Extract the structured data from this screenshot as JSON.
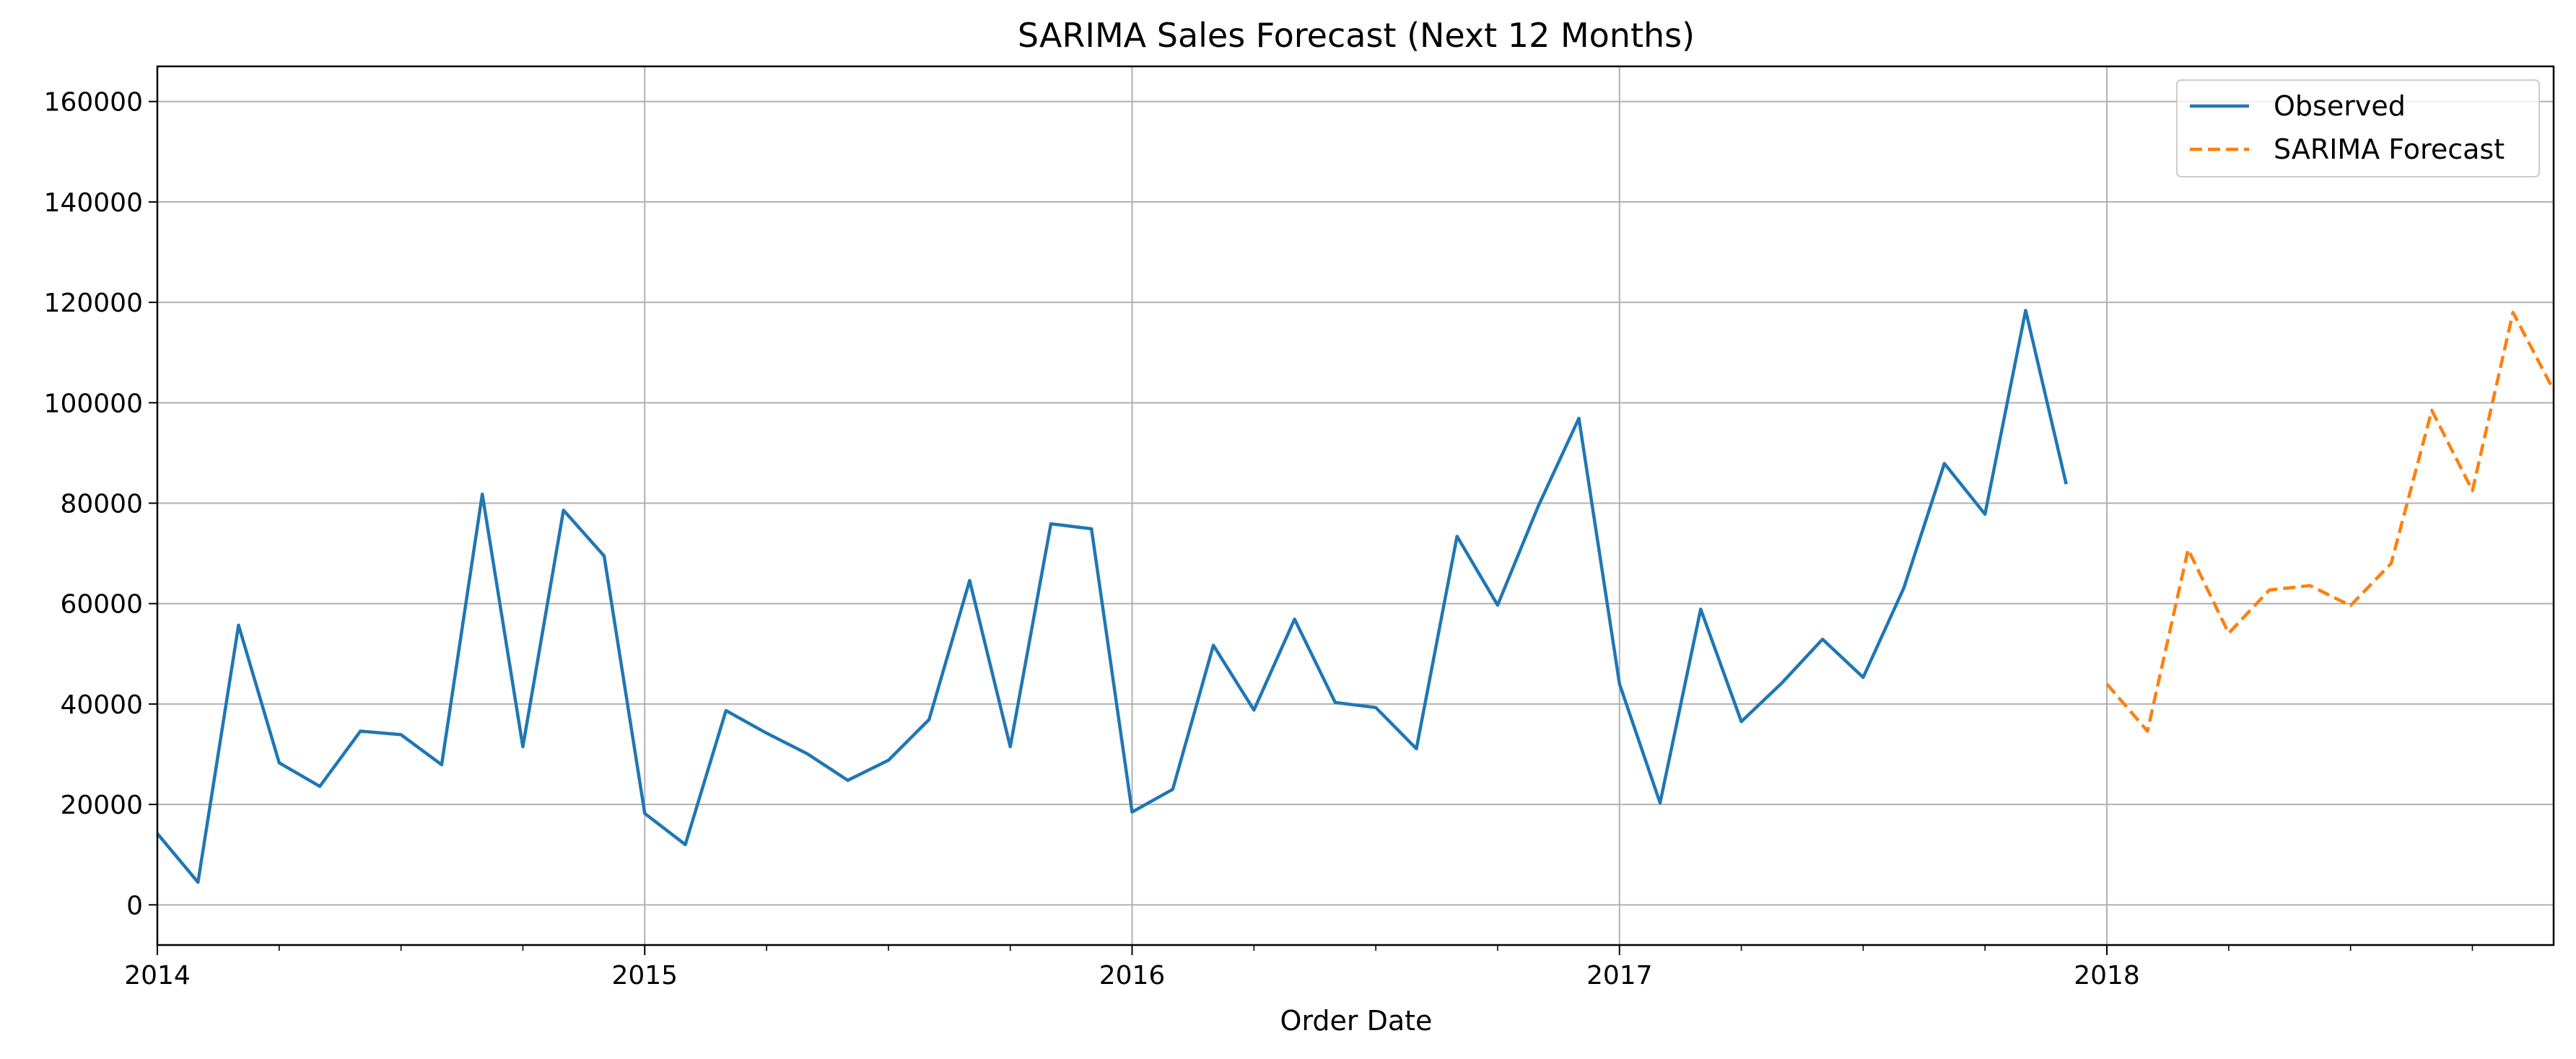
{
  "chart_data": {
    "type": "line",
    "title": "SARIMA Sales Forecast (Next 12 Months)",
    "xlabel": "Order Date",
    "ylabel": "",
    "xlim": [
      "2014-01",
      "2018-12"
    ],
    "ylim": [
      -8000,
      167000
    ],
    "grid": true,
    "legend_position": "top-right",
    "x_ticks": [
      "2014",
      "2015",
      "2016",
      "2017",
      "2018"
    ],
    "y_ticks": [
      0,
      20000,
      40000,
      60000,
      80000,
      100000,
      120000,
      140000,
      160000
    ],
    "series": [
      {
        "name": "Observed",
        "color": "#1f77b4",
        "style": "solid",
        "x": [
          "2014-01",
          "2014-02",
          "2014-03",
          "2014-04",
          "2014-05",
          "2014-06",
          "2014-07",
          "2014-08",
          "2014-09",
          "2014-10",
          "2014-11",
          "2014-12",
          "2015-01",
          "2015-02",
          "2015-03",
          "2015-04",
          "2015-05",
          "2015-06",
          "2015-07",
          "2015-08",
          "2015-09",
          "2015-10",
          "2015-11",
          "2015-12",
          "2016-01",
          "2016-02",
          "2016-03",
          "2016-04",
          "2016-05",
          "2016-06",
          "2016-07",
          "2016-08",
          "2016-09",
          "2016-10",
          "2016-11",
          "2016-12",
          "2017-01",
          "2017-02",
          "2017-03",
          "2017-04",
          "2017-05",
          "2017-06",
          "2017-07",
          "2017-08",
          "2017-09",
          "2017-10",
          "2017-11",
          "2017-12"
        ],
        "values": [
          14200,
          4500,
          55700,
          28300,
          23600,
          34600,
          33900,
          27900,
          81800,
          31500,
          78600,
          69500,
          18200,
          12000,
          38700,
          34200,
          30100,
          24800,
          28800,
          36900,
          64600,
          31500,
          75900,
          74900,
          18500,
          23000,
          51700,
          38800,
          56900,
          40300,
          39300,
          31100,
          73400,
          59700,
          79400,
          96900,
          44000,
          20300,
          58900,
          36500,
          44200,
          52900,
          45300,
          63100,
          87900,
          77800,
          118400,
          83800
        ]
      },
      {
        "name": "SARIMA Forecast",
        "color": "#ff7f0e",
        "style": "dashed",
        "x": [
          "2018-01",
          "2018-02",
          "2018-03",
          "2018-04",
          "2018-05",
          "2018-06",
          "2018-07",
          "2018-08",
          "2018-09",
          "2018-10",
          "2018-11",
          "2018-12"
        ],
        "values": [
          44000,
          34600,
          70800,
          54100,
          62700,
          63600,
          59600,
          68000,
          98500,
          82500,
          118000,
          102500
        ]
      }
    ]
  }
}
